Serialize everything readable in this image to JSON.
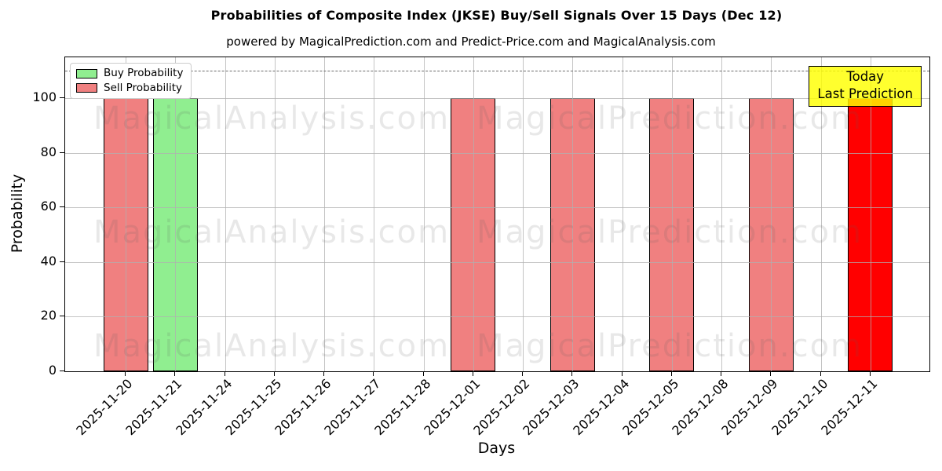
{
  "title": "Probabilities of Composite Index (JKSE) Buy/Sell Signals Over 15 Days (Dec 12)",
  "subtitle": "powered by MagicalPrediction.com and Predict-Price.com and MagicalAnalysis.com",
  "watermarks": {
    "left": "MagicalAnalysis.com",
    "right": "MagicalPrediction.com"
  },
  "chart_data": {
    "type": "bar",
    "title": "Probabilities of Composite Index (JKSE) Buy/Sell Signals Over 15 Days (Dec 12)",
    "subtitle": "powered by MagicalPrediction.com and Predict-Price.com and MagicalAnalysis.com",
    "xlabel": "Days",
    "ylabel": "Probability",
    "ylim": [
      0,
      115
    ],
    "yticks": [
      0,
      20,
      40,
      60,
      80,
      100
    ],
    "threshold_y": 110,
    "grid": true,
    "legend_position": "upper-left",
    "bar_width_ratio": 0.9,
    "categories": [
      "2025-11-20",
      "2025-11-21",
      "2025-11-24",
      "2025-11-25",
      "2025-11-26",
      "2025-11-27",
      "2025-11-28",
      "2025-12-01",
      "2025-12-02",
      "2025-12-03",
      "2025-12-04",
      "2025-12-05",
      "2025-12-08",
      "2025-12-09",
      "2025-12-10",
      "2025-12-11"
    ],
    "series": [
      {
        "name": "Buy Probability",
        "color": "#90EE90",
        "values": [
          0,
          100,
          0,
          0,
          0,
          0,
          0,
          0,
          0,
          0,
          0,
          0,
          0,
          0,
          0,
          0
        ]
      },
      {
        "name": "Sell Probability",
        "color": "#F08080",
        "values": [
          100,
          0,
          0,
          0,
          0,
          0,
          0,
          100,
          0,
          100,
          0,
          100,
          0,
          100,
          0,
          100
        ]
      }
    ],
    "highlight": {
      "category": "2025-12-11",
      "series": "Sell Probability",
      "color": "#FF0000",
      "label": [
        "Today",
        "Last Prediction"
      ]
    }
  }
}
